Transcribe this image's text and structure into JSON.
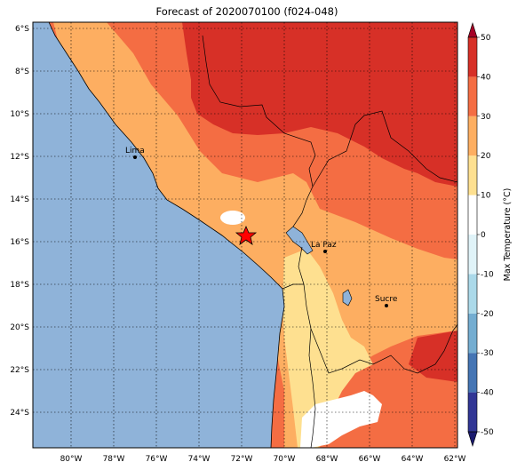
{
  "title": "Forecast of 2020070100 (f024-048)",
  "map": {
    "lon_labels": [
      "80°W",
      "78°W",
      "76°W",
      "74°W",
      "72°W",
      "70°W",
      "68°W",
      "66°W",
      "64°W",
      "62°W"
    ],
    "lat_labels": [
      "6°S",
      "8°S",
      "10°S",
      "12°S",
      "14°S",
      "16°S",
      "18°S",
      "20°S",
      "22°S",
      "24°S"
    ],
    "extent": {
      "lon_min": -81.8,
      "lon_max": -61.8,
      "lat_min": -25.7,
      "lat_max": -5.7
    },
    "ocean_color": "#8fb3d9",
    "cities": [
      {
        "name": "Lima",
        "lon": -77.0,
        "lat": -12.05
      },
      {
        "name": "La Paz",
        "lon": -68.1,
        "lat": -16.5
      },
      {
        "name": "Sucre",
        "lon": -65.3,
        "lat": -19.05
      }
    ],
    "marker": {
      "name": "star-marker",
      "lon": -71.9,
      "lat": -15.8,
      "color": "#ff0000"
    }
  },
  "colorbar": {
    "label": "Max Temperature (°C)",
    "ticks": [
      "-50",
      "-40",
      "-30",
      "-20",
      "-10",
      "0",
      "10",
      "20",
      "30",
      "40",
      "50"
    ],
    "bands": [
      {
        "from": -50,
        "to": -40,
        "color": "#313695"
      },
      {
        "from": -40,
        "to": -30,
        "color": "#4575b4"
      },
      {
        "from": -30,
        "to": -20,
        "color": "#74add1"
      },
      {
        "from": -20,
        "to": -10,
        "color": "#abd9e9"
      },
      {
        "from": -10,
        "to": 0,
        "color": "#e0f3f8"
      },
      {
        "from": 0,
        "to": 10,
        "color": "#ffffff"
      },
      {
        "from": 10,
        "to": 20,
        "color": "#fee090"
      },
      {
        "from": 20,
        "to": 30,
        "color": "#fdae61"
      },
      {
        "from": 30,
        "to": 40,
        "color": "#f46d43"
      },
      {
        "from": 40,
        "to": 50,
        "color": "#d73027"
      }
    ],
    "under_color": "#1a1a6e",
    "over_color": "#a50026"
  }
}
